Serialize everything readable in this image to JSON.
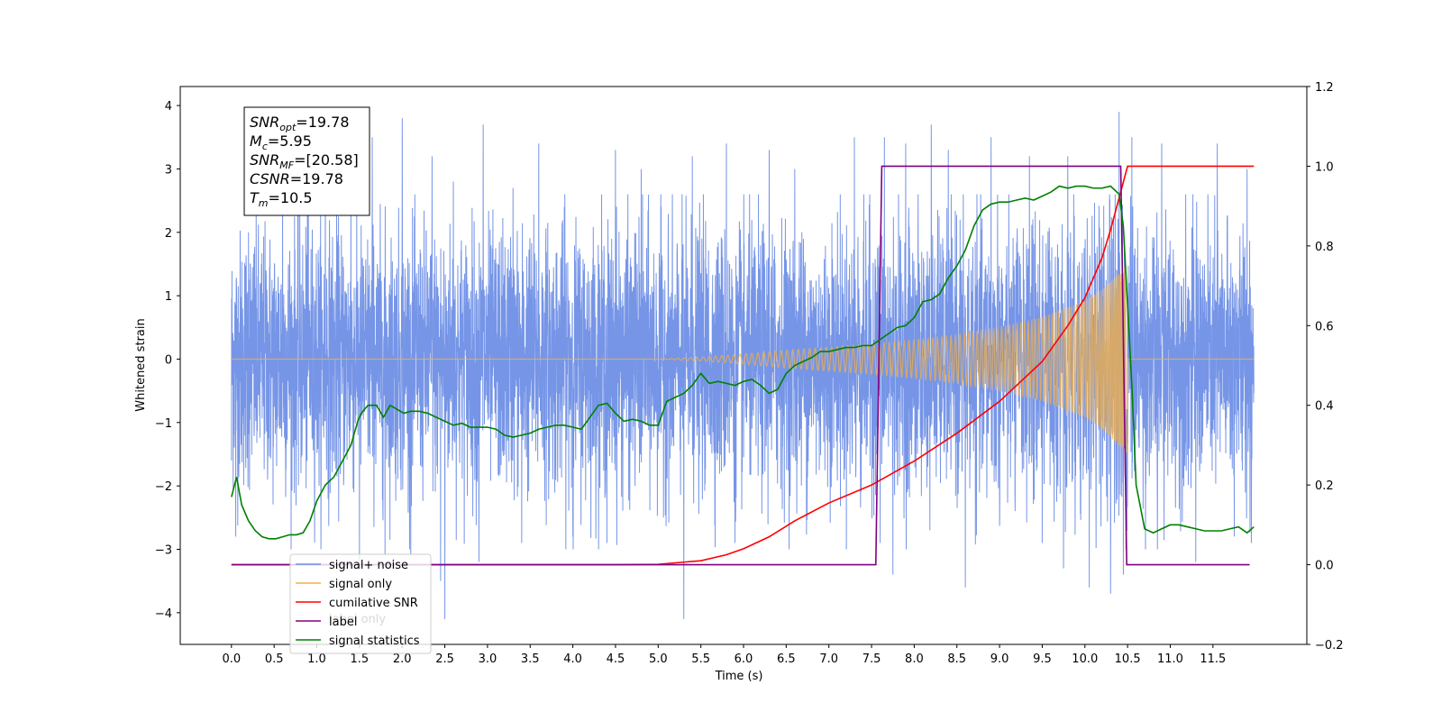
{
  "chart_data": {
    "type": "line",
    "xlabel": "Time (s)",
    "ylabel": "Whitened strain",
    "xlim": [
      -0.6,
      12.6
    ],
    "ylim": [
      -4.5,
      4.3
    ],
    "y2lim": [
      -0.2,
      1.2
    ],
    "x_ticks": [
      "0.0",
      "0.5",
      "1.0",
      "1.5",
      "2.0",
      "2.5",
      "3.0",
      "3.5",
      "4.0",
      "4.5",
      "5.0",
      "5.5",
      "6.0",
      "6.5",
      "7.0",
      "7.5",
      "8.0",
      "8.5",
      "9.0",
      "9.5",
      "10.0",
      "10.5",
      "11.0",
      "11.5"
    ],
    "y_ticks": [
      "-4",
      "-3",
      "-2",
      "-1",
      "0",
      "1",
      "2",
      "3",
      "4"
    ],
    "y2_ticks": [
      "-0.2",
      "0.0",
      "0.2",
      "0.4",
      "0.6",
      "0.8",
      "1.0",
      "1.2"
    ],
    "annotation": [
      {
        "base": "SNR",
        "sub": "opt",
        "value": "=19.78"
      },
      {
        "base": "M",
        "sub": "c",
        "value": "=5.95"
      },
      {
        "base": "SNR",
        "sub": "MF",
        "value": "=[20.58]"
      },
      {
        "base": "CSNR",
        "sub": "",
        "value": "=19.78"
      },
      {
        "base": "T",
        "sub": "m",
        "value": "=10.5"
      }
    ],
    "legend": {
      "position": "lower-left",
      "items": [
        {
          "label": "signal+ noise",
          "color": "#6f8fe6"
        },
        {
          "label": "signal only",
          "color": "#f5b041"
        },
        {
          "label": "cumilative SNR",
          "color": "#ff0000"
        },
        {
          "label": "label",
          "color": "#800080"
        },
        {
          "label": "signal statistics",
          "color": "#008000"
        }
      ],
      "ghost_text": "label only"
    },
    "series": [
      {
        "name": "signal+ noise",
        "axis": "left",
        "color": "#6f8fe6",
        "t_range": [
          0.0,
          11.98
        ],
        "noise_std": 1.0,
        "peaks": [
          [
            0.2,
            2.0
          ],
          [
            0.6,
            2.7
          ],
          [
            0.9,
            3.3
          ],
          [
            1.1,
            2.9
          ],
          [
            1.4,
            2.8
          ],
          [
            1.65,
            3.5
          ],
          [
            2.0,
            3.8
          ],
          [
            2.35,
            3.2
          ],
          [
            2.6,
            2.8
          ],
          [
            2.95,
            3.7
          ],
          [
            3.3,
            2.7
          ],
          [
            3.6,
            3.4
          ],
          [
            3.9,
            2.4
          ],
          [
            4.5,
            3.3
          ],
          [
            4.8,
            3.0
          ],
          [
            5.4,
            3.2
          ],
          [
            5.8,
            3.4
          ],
          [
            6.3,
            3.3
          ],
          [
            6.6,
            3.0
          ],
          [
            7.3,
            3.5
          ],
          [
            7.65,
            3.5
          ],
          [
            7.9,
            3.4
          ],
          [
            8.2,
            3.7
          ],
          [
            8.4,
            3.3
          ],
          [
            8.9,
            3.5
          ],
          [
            9.35,
            3.2
          ],
          [
            9.8,
            3.2
          ],
          [
            10.05,
            3.3
          ],
          [
            10.4,
            3.9
          ],
          [
            10.55,
            3.5
          ],
          [
            10.9,
            3.4
          ],
          [
            11.3,
            3.3
          ],
          [
            11.55,
            3.4
          ],
          [
            11.9,
            3.0
          ]
        ],
        "troughs": [
          [
            0.0,
            -1.6
          ],
          [
            0.05,
            -2.8
          ],
          [
            1.05,
            -2.0
          ],
          [
            1.5,
            -3.2
          ],
          [
            1.8,
            -3.1
          ],
          [
            2.1,
            -3.1
          ],
          [
            2.45,
            -3.5
          ],
          [
            2.5,
            -4.1
          ],
          [
            2.9,
            -3.2
          ],
          [
            3.4,
            -2.9
          ],
          [
            4.0,
            -2.8
          ],
          [
            4.4,
            -2.9
          ],
          [
            5.3,
            -4.1
          ],
          [
            5.9,
            -2.9
          ],
          [
            7.6,
            -2.9
          ],
          [
            7.75,
            -3.4
          ],
          [
            8.6,
            -3.6
          ],
          [
            9.5,
            -2.9
          ],
          [
            9.75,
            -3.3
          ],
          [
            10.05,
            -3.6
          ],
          [
            10.3,
            -3.7
          ],
          [
            10.45,
            -3.4
          ],
          [
            10.85,
            -3.0
          ],
          [
            11.3,
            -3.2
          ],
          [
            11.75,
            -2.8
          ],
          [
            11.95,
            -2.9
          ]
        ]
      },
      {
        "name": "signal only",
        "axis": "left",
        "color": "#f5b041",
        "onset": 5.0,
        "merger": 10.5,
        "amplitude_points": [
          [
            5.0,
            0.0
          ],
          [
            5.5,
            0.03
          ],
          [
            6.0,
            0.08
          ],
          [
            6.5,
            0.14
          ],
          [
            7.0,
            0.19
          ],
          [
            7.5,
            0.24
          ],
          [
            8.0,
            0.3
          ],
          [
            8.5,
            0.38
          ],
          [
            9.0,
            0.5
          ],
          [
            9.5,
            0.66
          ],
          [
            10.0,
            0.92
          ],
          [
            10.2,
            1.1
          ],
          [
            10.35,
            1.3
          ],
          [
            10.5,
            1.5
          ]
        ]
      },
      {
        "name": "cumilative SNR",
        "axis": "right",
        "color": "#ff0000",
        "x": [
          0.0,
          4.5,
          5.0,
          5.5,
          5.8,
          6.0,
          6.3,
          6.6,
          7.0,
          7.5,
          8.0,
          8.5,
          9.0,
          9.5,
          9.8,
          10.0,
          10.2,
          10.3,
          10.4,
          10.5,
          11.0,
          11.5,
          11.98
        ],
        "y": [
          0.0,
          0.0,
          0.001,
          0.01,
          0.025,
          0.04,
          0.07,
          0.11,
          0.155,
          0.2,
          0.26,
          0.33,
          0.41,
          0.51,
          0.6,
          0.67,
          0.77,
          0.84,
          0.92,
          1.0,
          1.0,
          1.0,
          1.0
        ]
      },
      {
        "name": "label",
        "axis": "right",
        "color": "#800080",
        "x": [
          0.0,
          7.55,
          7.62,
          10.42,
          10.49,
          11.93
        ],
        "y": [
          0.0,
          0.0,
          1.0,
          1.0,
          0.0,
          0.0
        ]
      },
      {
        "name": "signal statistics",
        "axis": "right",
        "color": "#008000",
        "x": [
          0.0,
          0.06,
          0.12,
          0.2,
          0.28,
          0.36,
          0.44,
          0.52,
          0.6,
          0.68,
          0.76,
          0.84,
          0.92,
          1.0,
          1.1,
          1.2,
          1.3,
          1.4,
          1.48,
          1.52,
          1.6,
          1.7,
          1.78,
          1.86,
          1.94,
          2.02,
          2.1,
          2.2,
          2.3,
          2.4,
          2.5,
          2.6,
          2.7,
          2.8,
          2.9,
          3.0,
          3.1,
          3.2,
          3.3,
          3.4,
          3.5,
          3.6,
          3.7,
          3.8,
          3.9,
          4.0,
          4.1,
          4.2,
          4.3,
          4.4,
          4.5,
          4.6,
          4.7,
          4.8,
          4.9,
          5.0,
          5.1,
          5.2,
          5.3,
          5.4,
          5.5,
          5.6,
          5.7,
          5.8,
          5.9,
          6.0,
          6.1,
          6.2,
          6.3,
          6.4,
          6.5,
          6.6,
          6.7,
          6.8,
          6.9,
          7.0,
          7.1,
          7.2,
          7.3,
          7.4,
          7.5,
          7.6,
          7.7,
          7.8,
          7.9,
          8.0,
          8.1,
          8.2,
          8.3,
          8.4,
          8.5,
          8.6,
          8.7,
          8.8,
          8.9,
          9.0,
          9.1,
          9.2,
          9.3,
          9.4,
          9.5,
          9.6,
          9.7,
          9.8,
          9.9,
          10.0,
          10.1,
          10.2,
          10.3,
          10.4,
          10.45,
          10.5,
          10.55,
          10.6,
          10.7,
          10.8,
          10.9,
          11.0,
          11.1,
          11.2,
          11.3,
          11.4,
          11.5,
          11.6,
          11.7,
          11.8,
          11.9,
          11.98
        ],
        "y": [
          0.17,
          0.22,
          0.15,
          0.11,
          0.085,
          0.07,
          0.065,
          0.065,
          0.07,
          0.075,
          0.075,
          0.08,
          0.11,
          0.16,
          0.2,
          0.22,
          0.26,
          0.3,
          0.36,
          0.38,
          0.4,
          0.4,
          0.37,
          0.4,
          0.39,
          0.38,
          0.385,
          0.385,
          0.38,
          0.37,
          0.36,
          0.35,
          0.355,
          0.345,
          0.345,
          0.345,
          0.34,
          0.325,
          0.32,
          0.325,
          0.33,
          0.34,
          0.345,
          0.35,
          0.35,
          0.345,
          0.34,
          0.37,
          0.4,
          0.405,
          0.38,
          0.36,
          0.365,
          0.36,
          0.35,
          0.35,
          0.41,
          0.42,
          0.43,
          0.45,
          0.48,
          0.455,
          0.46,
          0.455,
          0.45,
          0.46,
          0.465,
          0.45,
          0.43,
          0.44,
          0.48,
          0.5,
          0.51,
          0.52,
          0.535,
          0.535,
          0.54,
          0.545,
          0.545,
          0.55,
          0.55,
          0.565,
          0.58,
          0.595,
          0.6,
          0.62,
          0.66,
          0.665,
          0.68,
          0.72,
          0.75,
          0.79,
          0.85,
          0.89,
          0.905,
          0.91,
          0.91,
          0.915,
          0.92,
          0.915,
          0.925,
          0.935,
          0.95,
          0.945,
          0.95,
          0.95,
          0.945,
          0.945,
          0.95,
          0.93,
          0.85,
          0.65,
          0.45,
          0.2,
          0.09,
          0.08,
          0.09,
          0.1,
          0.1,
          0.095,
          0.09,
          0.085,
          0.085,
          0.085,
          0.09,
          0.095,
          0.08,
          0.095
        ]
      }
    ]
  }
}
